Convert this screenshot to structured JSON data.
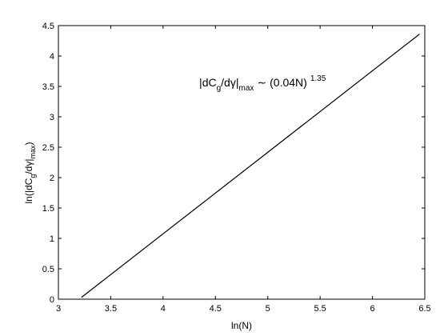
{
  "chart_data": {
    "type": "line",
    "title": "",
    "xlabel": "ln(N)",
    "ylabel": {
      "prefix": "ln(",
      "bar1": "|",
      "d1": "dC",
      "sub1": "g",
      "slash": "/d",
      "gamma": "γ",
      "bar2": "|",
      "sub2": "max",
      "suffix": ")"
    },
    "xlim": [
      3,
      6.5
    ],
    "ylim": [
      0,
      4.5
    ],
    "xticks": [
      "3",
      "3.5",
      "4",
      "4.5",
      "5",
      "5.5",
      "6",
      "6.5"
    ],
    "yticks": [
      "0",
      "0.5",
      "1",
      "1.5",
      "2",
      "2.5",
      "3",
      "3.5",
      "4",
      "4.5"
    ],
    "grid": false,
    "series": [
      {
        "x": [
          3.22,
          6.45
        ],
        "y": [
          0.03,
          4.36
        ]
      }
    ],
    "annotation": {
      "bar1": "|",
      "d1": "dC",
      "sub1": "g",
      "slash": "/d",
      "gamma": "γ",
      "bar2": "|",
      "sub2": "max",
      "sim": "∼",
      "expr": "(0.04N)",
      "exponent": "1.35",
      "x": 4.95,
      "y": 3.5
    },
    "colors": {
      "line": "#000000",
      "axis": "#000000",
      "background": "#ffffff"
    }
  }
}
